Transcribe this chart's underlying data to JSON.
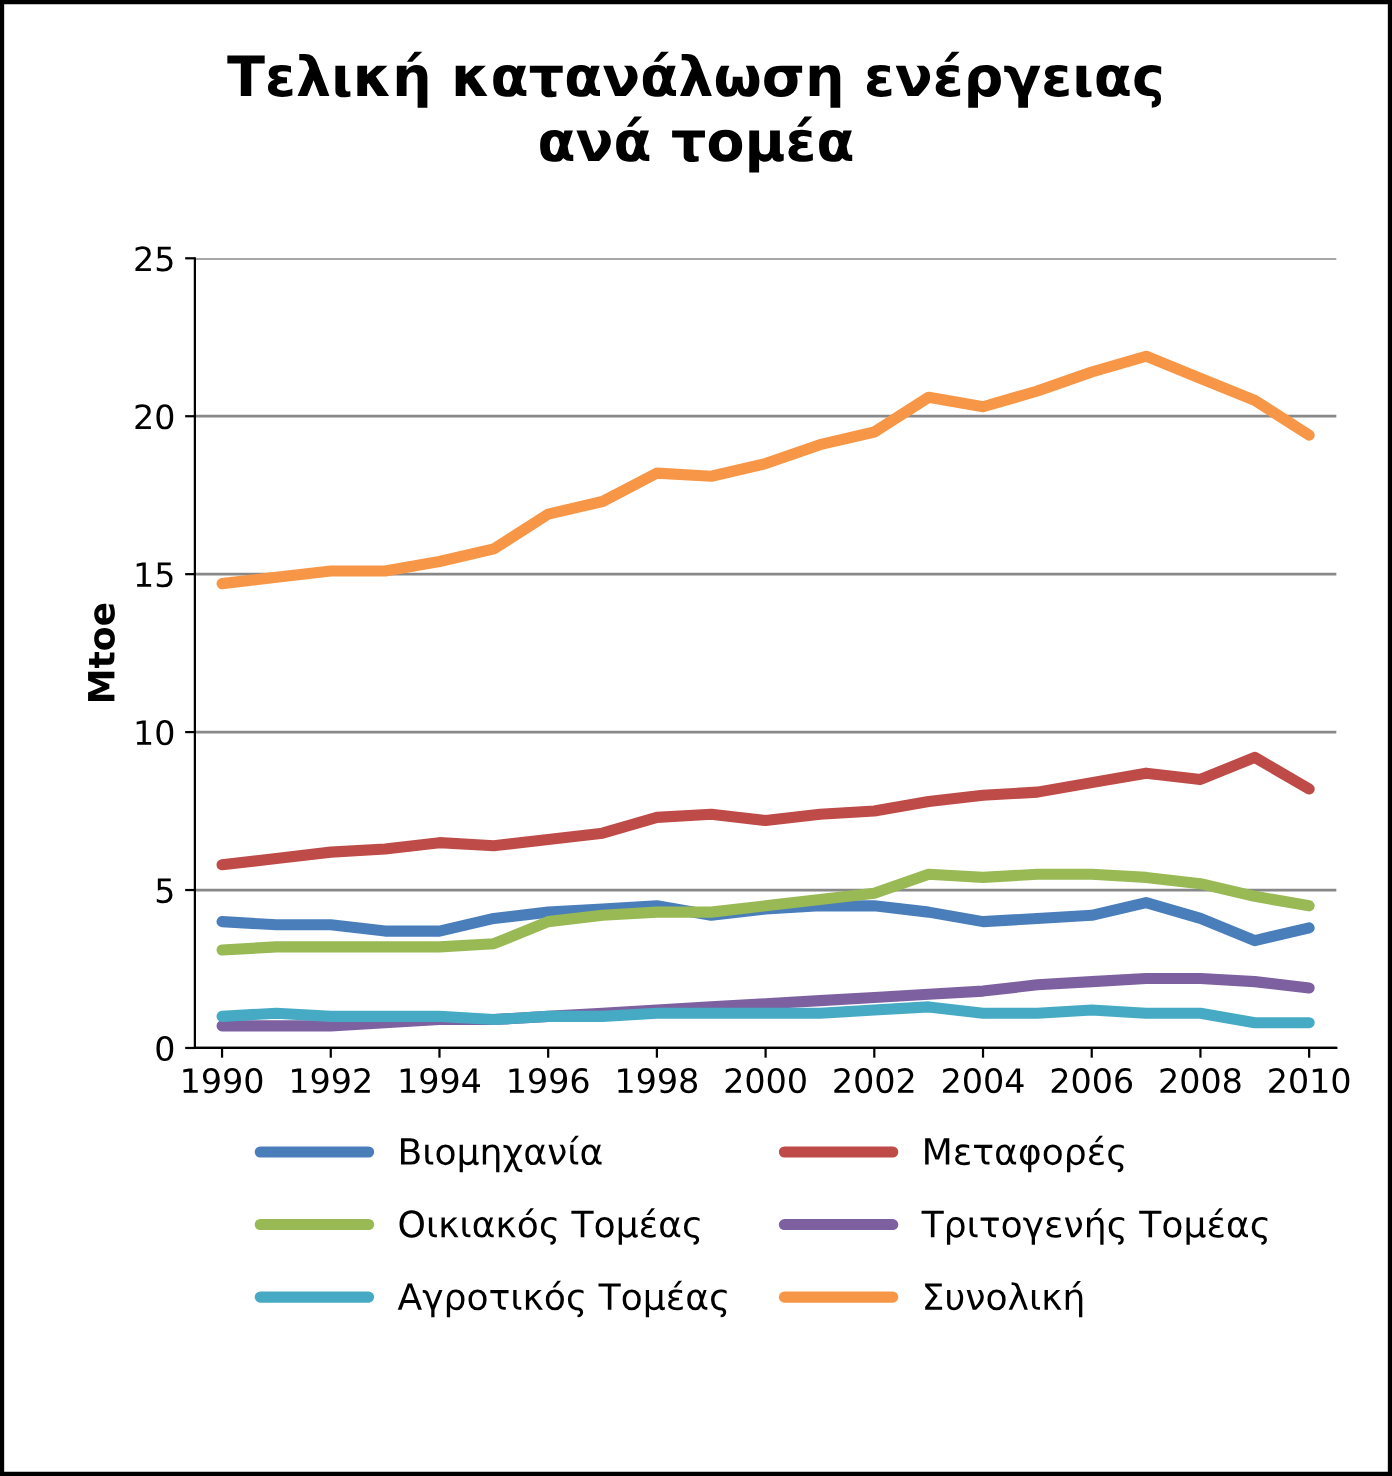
{
  "chart_data": {
    "type": "line",
    "title": "Τελική κατανάλωση ενέργειας\nανά τομέα",
    "ylabel": "Mtoe",
    "x": [
      1990,
      1991,
      1992,
      1993,
      1994,
      1995,
      1996,
      1997,
      1998,
      1999,
      2000,
      2001,
      2002,
      2003,
      2004,
      2005,
      2006,
      2007,
      2008,
      2009,
      2010
    ],
    "xlim": [
      1989.5,
      2010.5
    ],
    "xticks": [
      1990,
      1992,
      1994,
      1996,
      1998,
      2000,
      2002,
      2004,
      2006,
      2008,
      2010
    ],
    "ylim": [
      0,
      25
    ],
    "yticks": [
      0,
      5,
      10,
      15,
      20,
      25
    ],
    "grid": "y",
    "legend": "bottom",
    "marker": "none",
    "line_style": "solid",
    "series": [
      {
        "name": "Βιομηχανία",
        "color": "#4a7ebb",
        "values": [
          4.0,
          3.9,
          3.9,
          3.7,
          3.7,
          4.1,
          4.3,
          4.4,
          4.5,
          4.2,
          4.4,
          4.5,
          4.5,
          4.3,
          4.0,
          4.1,
          4.2,
          4.6,
          4.1,
          3.4,
          3.8
        ]
      },
      {
        "name": "Μεταφορές",
        "color": "#be4b48",
        "values": [
          5.8,
          6.0,
          6.2,
          6.3,
          6.5,
          6.4,
          6.6,
          6.8,
          7.3,
          7.4,
          7.2,
          7.4,
          7.5,
          7.8,
          8.0,
          8.1,
          8.4,
          8.7,
          8.5,
          9.2,
          8.2
        ]
      },
      {
        "name": "Οικιακός Τομέας",
        "color": "#98b954",
        "values": [
          3.1,
          3.2,
          3.2,
          3.2,
          3.2,
          3.3,
          4.0,
          4.2,
          4.3,
          4.3,
          4.5,
          4.7,
          4.9,
          5.5,
          5.4,
          5.5,
          5.5,
          5.4,
          5.2,
          4.8,
          4.5
        ]
      },
      {
        "name": "Τριτογενής Τομέας",
        "color": "#7d60a0",
        "values": [
          0.7,
          0.7,
          0.7,
          0.8,
          0.9,
          0.9,
          1.0,
          1.1,
          1.2,
          1.3,
          1.4,
          1.5,
          1.6,
          1.7,
          1.8,
          2.0,
          2.1,
          2.2,
          2.2,
          2.1,
          1.9
        ]
      },
      {
        "name": "Αγροτικός Τομέας",
        "color": "#46aac5",
        "values": [
          1.0,
          1.1,
          1.0,
          1.0,
          1.0,
          0.9,
          1.0,
          1.0,
          1.1,
          1.1,
          1.1,
          1.1,
          1.2,
          1.3,
          1.1,
          1.1,
          1.2,
          1.1,
          1.1,
          0.8,
          0.8
        ]
      },
      {
        "name": "Συνολική",
        "color": "#f79646",
        "values": [
          14.7,
          14.9,
          15.1,
          15.1,
          15.4,
          15.8,
          16.9,
          17.3,
          18.2,
          18.1,
          18.5,
          19.1,
          19.5,
          20.6,
          20.3,
          20.8,
          21.4,
          21.9,
          21.2,
          20.5,
          19.4
        ]
      }
    ]
  }
}
